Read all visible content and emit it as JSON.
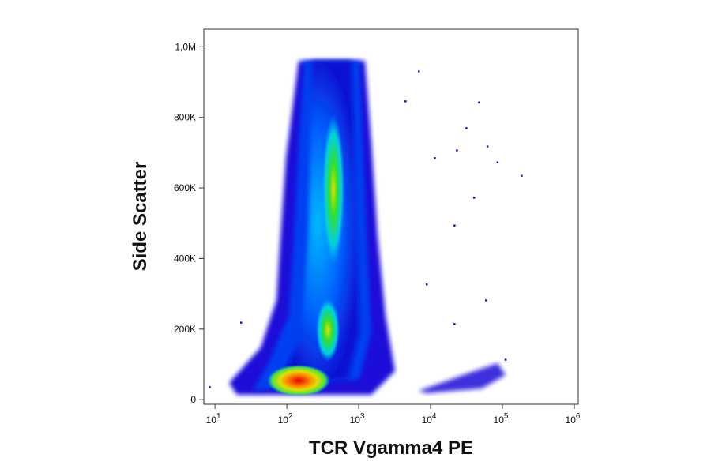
{
  "chart_data": {
    "type": "scatter",
    "x_label": "TCR Vgamma4 PE",
    "y_label": "Side Scatter",
    "xscale": "log",
    "xlim": [
      7,
      1135000
    ],
    "ylim": [
      -13000,
      1050000
    ],
    "xticks": [
      {
        "value": 10,
        "label": "10",
        "exponent": "1"
      },
      {
        "value": 100,
        "label": "10",
        "exponent": "2"
      },
      {
        "value": 1000,
        "label": "10",
        "exponent": "3"
      },
      {
        "value": 10000,
        "label": "10",
        "exponent": "4"
      },
      {
        "value": 100000,
        "label": "10",
        "exponent": "5"
      },
      {
        "value": 1000000,
        "label": "10",
        "exponent": "6"
      }
    ],
    "yticks": [
      0,
      {
        "value": 200000,
        "label": "200K"
      },
      {
        "value": 400000,
        "label": "400K"
      },
      {
        "value": 600000,
        "label": "600K"
      },
      {
        "value": 800000,
        "label": "800K"
      },
      {
        "value": 1000000,
        "label": "1,0M"
      }
    ],
    "color": "#1a10d8",
    "x": [
      6840,
      4450,
      47000,
      31300,
      61600,
      85000,
      184000,
      11400,
      23100,
      40200,
      21400,
      8800,
      58900,
      21400,
      110000,
      23,
      8.4
    ],
    "values": [
      931000,
      846000,
      843000,
      770000,
      718000,
      673000,
      635000,
      685000,
      707000,
      573000,
      494000,
      327000,
      282000,
      215000,
      114000,
      219000,
      36000
    ]
  }
}
